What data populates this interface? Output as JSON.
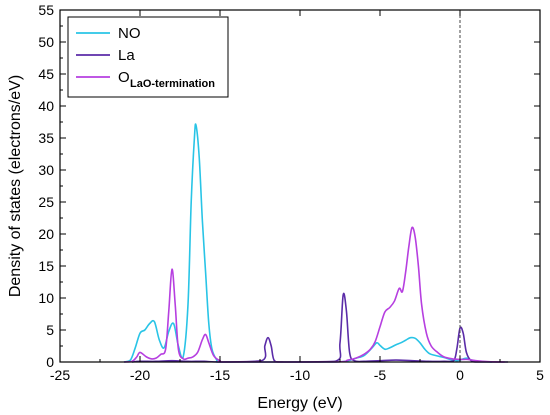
{
  "chart_data": {
    "type": "line",
    "xlabel": "Energy (eV)",
    "ylabel": "Density of states (electrons/eV)",
    "xlim": [
      -25,
      5
    ],
    "ylim": [
      0,
      55
    ],
    "x_ticks": [
      -25,
      -20,
      -15,
      -10,
      -5,
      0,
      5
    ],
    "x_tick_labels": [
      "-25",
      "-20",
      "-15",
      "-10",
      "-5",
      "0",
      "5"
    ],
    "y_ticks": [
      0,
      5,
      10,
      15,
      20,
      25,
      30,
      35,
      40,
      45,
      50,
      55
    ],
    "y_tick_labels": [
      "0",
      "5",
      "10",
      "15",
      "20",
      "25",
      "30",
      "35",
      "40",
      "45",
      "50",
      "55"
    ],
    "fermi_level_x": 0,
    "grid": false,
    "legend_placement": "top-left",
    "series": [
      {
        "name": "NO",
        "color": "#29c4e6",
        "points": [
          [
            -21.0,
            0.0
          ],
          [
            -20.6,
            0.3
          ],
          [
            -20.3,
            2.2
          ],
          [
            -20.0,
            4.5
          ],
          [
            -19.7,
            5.0
          ],
          [
            -19.4,
            6.0
          ],
          [
            -19.1,
            6.3
          ],
          [
            -18.8,
            3.5
          ],
          [
            -18.5,
            2.2
          ],
          [
            -18.2,
            4.8
          ],
          [
            -17.9,
            6.0
          ],
          [
            -17.6,
            2.5
          ],
          [
            -17.3,
            0.8
          ],
          [
            -17.0,
            9.0
          ],
          [
            -16.8,
            25.0
          ],
          [
            -16.6,
            35.0
          ],
          [
            -16.5,
            37.0
          ],
          [
            -16.3,
            32.0
          ],
          [
            -16.1,
            22.0
          ],
          [
            -15.9,
            14.0
          ],
          [
            -15.7,
            6.0
          ],
          [
            -15.5,
            2.0
          ],
          [
            -15.2,
            0.3
          ],
          [
            -15.0,
            0.0
          ],
          [
            -12.5,
            0.0
          ],
          [
            -12.0,
            0.0
          ],
          [
            -8.0,
            0.0
          ],
          [
            -7.0,
            0.2
          ],
          [
            -6.5,
            0.6
          ],
          [
            -6.0,
            1.0
          ],
          [
            -5.5,
            2.2
          ],
          [
            -5.2,
            3.0
          ],
          [
            -5.0,
            2.6
          ],
          [
            -4.7,
            2.0
          ],
          [
            -4.4,
            2.2
          ],
          [
            -4.0,
            2.7
          ],
          [
            -3.7,
            3.0
          ],
          [
            -3.4,
            3.4
          ],
          [
            -3.1,
            3.8
          ],
          [
            -2.8,
            3.7
          ],
          [
            -2.5,
            3.0
          ],
          [
            -2.2,
            2.0
          ],
          [
            -1.9,
            1.3
          ],
          [
            -1.5,
            1.0
          ],
          [
            -1.0,
            0.7
          ],
          [
            -0.6,
            0.4
          ],
          [
            -0.2,
            0.2
          ],
          [
            0.1,
            0.4
          ],
          [
            0.4,
            0.6
          ],
          [
            0.7,
            0.3
          ],
          [
            1.2,
            0.1
          ],
          [
            2.0,
            0.0
          ]
        ]
      },
      {
        "name": "La",
        "color": "#5b2ca8",
        "points": [
          [
            -20.5,
            0.0
          ],
          [
            -20.0,
            0.1
          ],
          [
            -19.0,
            0.1
          ],
          [
            -18.0,
            0.2
          ],
          [
            -17.0,
            0.1
          ],
          [
            -16.0,
            0.1
          ],
          [
            -15.0,
            0.0
          ],
          [
            -12.4,
            0.2
          ],
          [
            -12.2,
            2.5
          ],
          [
            -12.0,
            3.8
          ],
          [
            -11.8,
            2.5
          ],
          [
            -11.6,
            0.2
          ],
          [
            -11.0,
            0.0
          ],
          [
            -7.8,
            0.1
          ],
          [
            -7.5,
            3.0
          ],
          [
            -7.3,
            10.5
          ],
          [
            -7.1,
            8.0
          ],
          [
            -6.9,
            1.5
          ],
          [
            -6.6,
            0.2
          ],
          [
            -6.0,
            0.1
          ],
          [
            -5.0,
            0.2
          ],
          [
            -4.0,
            0.3
          ],
          [
            -3.0,
            0.2
          ],
          [
            -2.0,
            0.1
          ],
          [
            -1.0,
            0.1
          ],
          [
            -0.4,
            0.2
          ],
          [
            -0.2,
            2.0
          ],
          [
            0.0,
            5.3
          ],
          [
            0.2,
            4.5
          ],
          [
            0.4,
            1.5
          ],
          [
            0.7,
            0.2
          ],
          [
            1.2,
            0.0
          ],
          [
            3.0,
            0.0
          ]
        ]
      },
      {
        "name": "OLaO-termination",
        "color": "#b63fe0",
        "points": [
          [
            -21.0,
            0.0
          ],
          [
            -20.5,
            0.1
          ],
          [
            -20.2,
            0.8
          ],
          [
            -20.0,
            1.5
          ],
          [
            -19.6,
            0.8
          ],
          [
            -19.3,
            0.5
          ],
          [
            -19.0,
            0.6
          ],
          [
            -18.7,
            1.2
          ],
          [
            -18.4,
            2.0
          ],
          [
            -18.2,
            8.0
          ],
          [
            -18.0,
            14.5
          ],
          [
            -17.8,
            9.0
          ],
          [
            -17.6,
            2.0
          ],
          [
            -17.3,
            0.5
          ],
          [
            -17.0,
            0.6
          ],
          [
            -16.7,
            0.8
          ],
          [
            -16.4,
            1.5
          ],
          [
            -16.1,
            3.5
          ],
          [
            -15.9,
            4.3
          ],
          [
            -15.7,
            3.0
          ],
          [
            -15.4,
            1.0
          ],
          [
            -15.0,
            0.2
          ],
          [
            -14.5,
            0.0
          ],
          [
            -8.0,
            0.0
          ],
          [
            -7.0,
            0.3
          ],
          [
            -6.5,
            0.6
          ],
          [
            -6.0,
            1.2
          ],
          [
            -5.6,
            2.0
          ],
          [
            -5.3,
            3.2
          ],
          [
            -5.0,
            5.5
          ],
          [
            -4.7,
            7.8
          ],
          [
            -4.4,
            8.5
          ],
          [
            -4.1,
            9.5
          ],
          [
            -3.8,
            11.5
          ],
          [
            -3.6,
            11.0
          ],
          [
            -3.4,
            14.0
          ],
          [
            -3.2,
            18.0
          ],
          [
            -3.0,
            21.0
          ],
          [
            -2.8,
            19.5
          ],
          [
            -2.6,
            15.0
          ],
          [
            -2.4,
            9.0
          ],
          [
            -2.1,
            4.5
          ],
          [
            -1.8,
            2.5
          ],
          [
            -1.4,
            1.5
          ],
          [
            -1.0,
            0.8
          ],
          [
            -0.5,
            0.5
          ],
          [
            0.0,
            0.4
          ],
          [
            0.5,
            0.4
          ],
          [
            1.0,
            0.2
          ],
          [
            1.8,
            0.05
          ],
          [
            2.8,
            0.0
          ]
        ]
      }
    ]
  },
  "legend": {
    "items": [
      {
        "label": "NO",
        "sub": "",
        "color": "#29c4e6"
      },
      {
        "label": "La",
        "sub": "",
        "color": "#5b2ca8"
      },
      {
        "label": "O",
        "sub": "LaO-termination",
        "color": "#b63fe0"
      }
    ]
  }
}
